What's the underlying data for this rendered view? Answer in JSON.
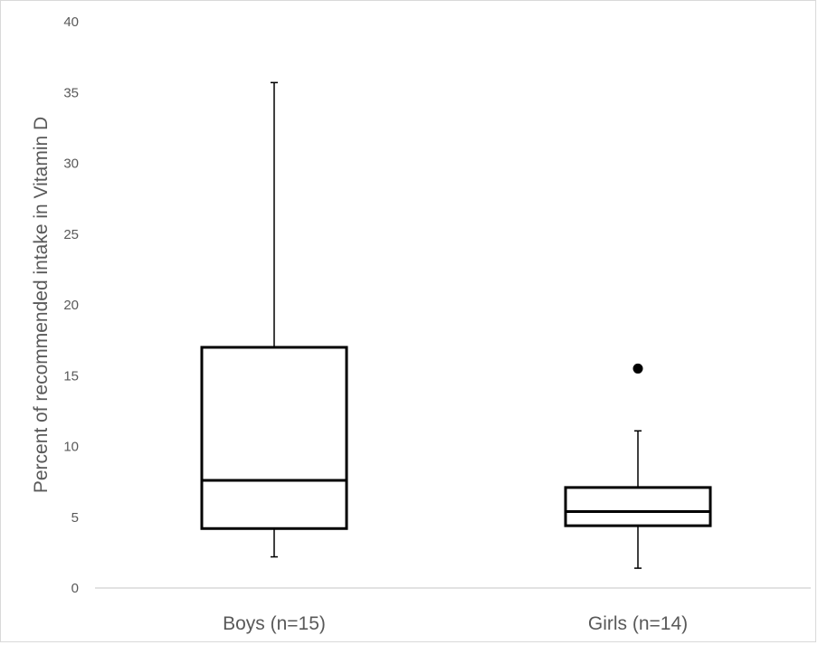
{
  "chart_data": {
    "type": "box",
    "ylabel": "Percent of recommended intake in Vitamin D",
    "ylim": [
      0,
      40
    ],
    "yticks": [
      0,
      5,
      10,
      15,
      20,
      25,
      30,
      35,
      40
    ],
    "grid": false,
    "categories": [
      "Boys (n=15)",
      "Girls (n=14)"
    ],
    "boxes": [
      {
        "category": "Boys (n=15)",
        "whisker_low": 2.2,
        "q1": 4.2,
        "median": 7.6,
        "q3": 17.0,
        "whisker_high": 35.7,
        "outliers": []
      },
      {
        "category": "Girls (n=14)",
        "whisker_low": 1.4,
        "q1": 4.4,
        "median": 5.4,
        "q3": 7.1,
        "whisker_high": 11.1,
        "outliers": [
          15.5
        ]
      }
    ],
    "colors": {
      "box_stroke": "#000000",
      "axis_line": "#d9d9d9",
      "text": "#595959"
    }
  }
}
